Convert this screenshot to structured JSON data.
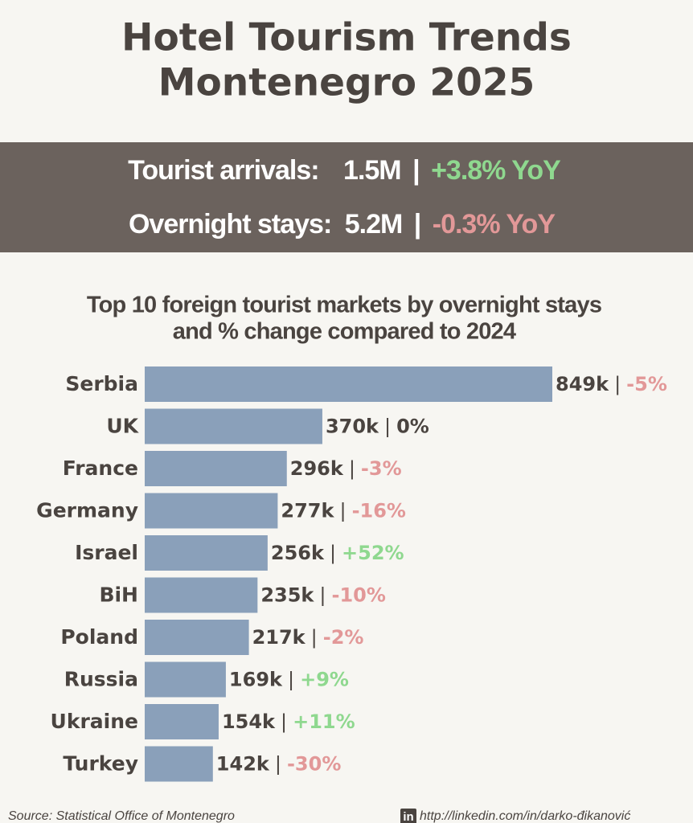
{
  "page_title": [
    "Hotel Tourism Trends",
    "Montenegro 2025"
  ],
  "kpis": [
    {
      "label": "Tourist arrivals:",
      "value": "1.5M",
      "separator": "|",
      "change": "+3.8% YoY"
    },
    {
      "label": "Overnight stays:",
      "value": "5.2M",
      "separator": "|",
      "change": "-0.3% YoY"
    }
  ],
  "chart_data": {
    "type": "bar",
    "orientation": "horizontal",
    "title_lines": [
      "Top 10 foreign tourist markets by overnight stays",
      "and % change compared to 2024"
    ],
    "categories": [
      "Serbia",
      "UK",
      "France",
      "Germany",
      "Israel",
      "BiH",
      "Poland",
      "Russia",
      "Ukraine",
      "Turkey"
    ],
    "values": [
      849000,
      370000,
      296000,
      277000,
      256000,
      235000,
      217000,
      169000,
      154000,
      142000
    ],
    "value_labels": [
      "849k",
      "370k",
      "296k",
      "277k",
      "256k",
      "235k",
      "217k",
      "169k",
      "154k",
      "142k"
    ],
    "separator": "|",
    "changes": [
      -5,
      0,
      -3,
      -16,
      52,
      -10,
      -2,
      9,
      11,
      -30
    ],
    "change_labels": [
      "-5%",
      "0%",
      "-3%",
      "-16%",
      "+52%",
      "-10%",
      "-2%",
      "+9%",
      "+11%",
      "-30%"
    ],
    "color": "#8aa0ba",
    "positive_color": "#8fd88f",
    "negative_color": "#e29898",
    "neutral_color": "#4a4440"
  },
  "footer": {
    "source": "Source: Statistical Office of Montenegro",
    "icon": "in",
    "link": "http://linkedin.com/in/darko-đikanović"
  }
}
